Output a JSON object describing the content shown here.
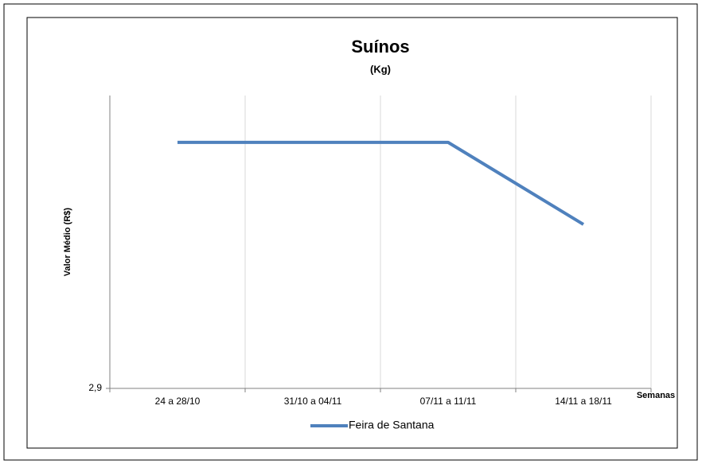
{
  "chart_data": {
    "type": "line",
    "title": "Suínos",
    "subtitle": "(Kg)",
    "y_label": "Valor Médio (R$)",
    "x_label": "Semanas",
    "categories": [
      "24 a 28/10",
      "31/10 a 04/11",
      "07/11 a 11/11",
      "14/11 a 18/11"
    ],
    "series": [
      {
        "name": "Feira de Santana",
        "color": "#4f81bd",
        "values": [
          2.984,
          2.984,
          2.984,
          2.956
        ]
      }
    ],
    "ylim": [
      2.9,
      3.0
    ],
    "yticks": [
      {
        "value": 2.9,
        "label": "2,9"
      }
    ],
    "legend": "bottom"
  }
}
